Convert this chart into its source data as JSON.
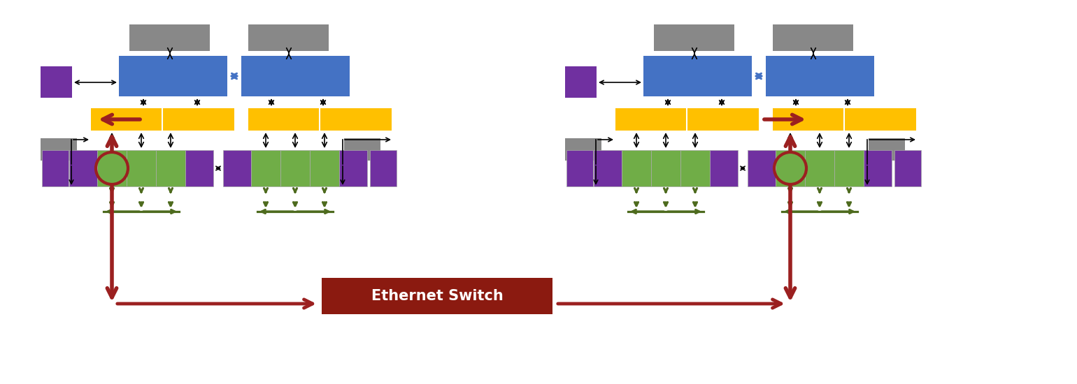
{
  "bg_color": "#ffffff",
  "colors": {
    "gray": "#888888",
    "blue": "#4472C4",
    "gold": "#FFC000",
    "green": "#70AD47",
    "purple": "#7030A0",
    "dark_red": "#8B1A10",
    "dark_green": "#4E6B1E",
    "red_arrow": "#9B2020",
    "blue_arrow": "#4472C4",
    "black": "#000000"
  },
  "eth_text": "Ethernet Switch",
  "eth_bg": "#8B1A10",
  "eth_fg": "#ffffff"
}
